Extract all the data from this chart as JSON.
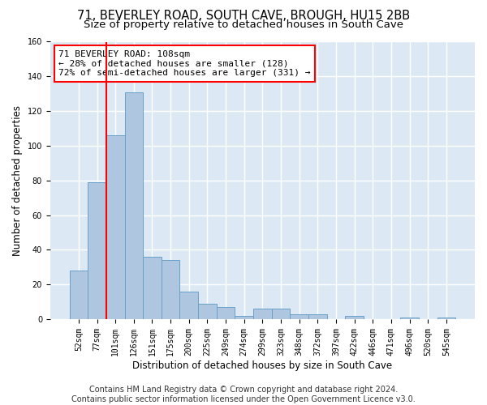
{
  "title1": "71, BEVERLEY ROAD, SOUTH CAVE, BROUGH, HU15 2BB",
  "title2": "Size of property relative to detached houses in South Cave",
  "xlabel": "Distribution of detached houses by size in South Cave",
  "ylabel": "Number of detached properties",
  "bar_labels": [
    "52sqm",
    "77sqm",
    "101sqm",
    "126sqm",
    "151sqm",
    "175sqm",
    "200sqm",
    "225sqm",
    "249sqm",
    "274sqm",
    "299sqm",
    "323sqm",
    "348sqm",
    "372sqm",
    "397sqm",
    "422sqm",
    "446sqm",
    "471sqm",
    "496sqm",
    "520sqm",
    "545sqm"
  ],
  "bar_values": [
    28,
    79,
    106,
    131,
    36,
    34,
    16,
    9,
    7,
    2,
    6,
    6,
    3,
    3,
    0,
    2,
    0,
    0,
    1,
    0,
    1
  ],
  "bar_color": "#aec6df",
  "bar_edge_color": "#6aa0c8",
  "bg_color": "#dce9f5",
  "grid_color": "white",
  "vline_color": "red",
  "vline_position": 1.5,
  "annotation_text": "71 BEVERLEY ROAD: 108sqm\n← 28% of detached houses are smaller (128)\n72% of semi-detached houses are larger (331) →",
  "annotation_box_color": "white",
  "annotation_box_edge": "red",
  "ylim": [
    0,
    160
  ],
  "yticks": [
    0,
    20,
    40,
    60,
    80,
    100,
    120,
    140,
    160
  ],
  "footnote": "Contains HM Land Registry data © Crown copyright and database right 2024.\nContains public sector information licensed under the Open Government Licence v3.0.",
  "title1_fontsize": 10.5,
  "title2_fontsize": 9.5,
  "xlabel_fontsize": 8.5,
  "ylabel_fontsize": 8.5,
  "annotation_fontsize": 8,
  "footnote_fontsize": 7,
  "tick_fontsize": 7
}
